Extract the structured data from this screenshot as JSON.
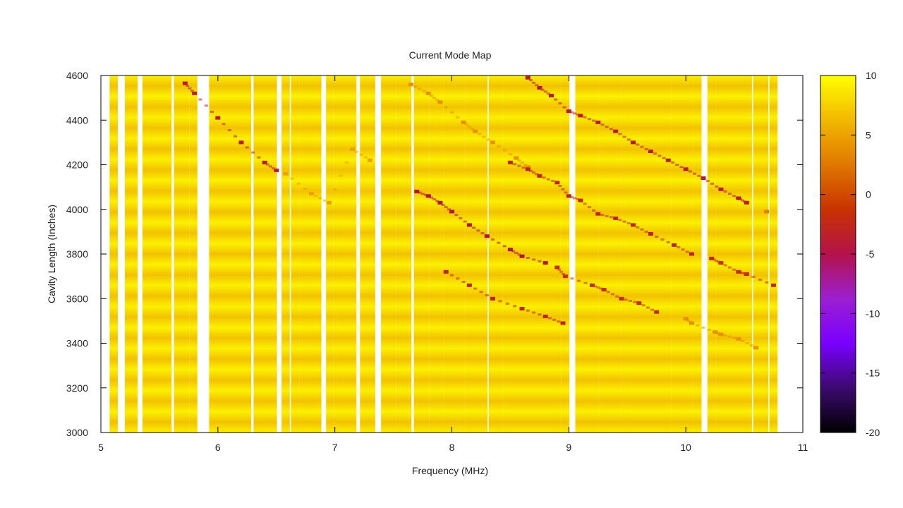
{
  "chart_data": {
    "type": "heatmap",
    "title": "Current Mode Map",
    "xlabel": "Frequency (MHz)",
    "ylabel": "Cavity Length (Inches)",
    "xlim": [
      5,
      11
    ],
    "ylim": [
      3000,
      4600
    ],
    "x_ticks": [
      "5",
      "6",
      "7",
      "8",
      "9",
      "10",
      "11"
    ],
    "y_ticks": [
      "3000",
      "3200",
      "3400",
      "3600",
      "3800",
      "4000",
      "4200",
      "4400",
      "4600"
    ],
    "colorbar": {
      "range": [
        -20,
        10
      ],
      "ticks": [
        "10",
        "5",
        "0",
        "-5",
        "-10",
        "-15",
        "-20"
      ],
      "palette": [
        "#000000",
        "#3c0a6e",
        "#7a00ff",
        "#9b1fd0",
        "#b4124a",
        "#c83200",
        "#e07800",
        "#f2b800",
        "#ffff00"
      ]
    },
    "background_value": 8.5,
    "column_width_mhz": 0.07,
    "columns_mhz": [
      5.11,
      5.24,
      5.28,
      5.39,
      5.45,
      5.51,
      5.57,
      5.66,
      5.72,
      5.79,
      5.96,
      6.02,
      6.08,
      6.14,
      6.19,
      6.25,
      6.34,
      6.4,
      6.47,
      6.58,
      6.66,
      6.73,
      6.79,
      6.85,
      6.96,
      7.03,
      7.09,
      7.15,
      7.25,
      7.31,
      7.43,
      7.49,
      7.56,
      7.62,
      7.71,
      7.77,
      7.84,
      7.89,
      7.96,
      8.02,
      8.08,
      8.15,
      8.21,
      8.27,
      8.35,
      8.4,
      8.47,
      8.53,
      8.59,
      8.65,
      8.71,
      8.78,
      8.84,
      8.9,
      8.97,
      9.09,
      9.15,
      9.22,
      9.29,
      9.35,
      9.41,
      9.48,
      9.54,
      9.6,
      9.66,
      9.72,
      9.79,
      9.84,
      9.91,
      9.97,
      10.03,
      10.1,
      10.22,
      10.29,
      10.35,
      10.41,
      10.47,
      10.53,
      10.61,
      10.67,
      10.75
    ],
    "mode_lines": [
      {
        "x": [
          5.72,
          5.8,
          6.0,
          6.2,
          6.4,
          6.5
        ],
        "y": [
          4565,
          4520,
          4410,
          4300,
          4210,
          4175
        ],
        "value": -4
      },
      {
        "x": [
          6.58,
          6.8,
          6.95,
          7.15,
          7.3
        ],
        "y": [
          4160,
          4070,
          4030,
          4270,
          4220
        ],
        "value": 5
      },
      {
        "x": [
          7.65,
          7.8,
          7.9,
          8.1,
          8.2,
          8.35,
          8.55,
          8.65
        ],
        "y": [
          4560,
          4520,
          4480,
          4390,
          4350,
          4300,
          4230,
          4190
        ],
        "value": 4
      },
      {
        "x": [
          7.7,
          7.8,
          7.9,
          8.0,
          8.15,
          8.3,
          8.5,
          8.6,
          8.8
        ],
        "y": [
          4080,
          4060,
          4030,
          3990,
          3930,
          3880,
          3820,
          3790,
          3760
        ],
        "value": -5
      },
      {
        "x": [
          8.5,
          8.65,
          8.75,
          8.9,
          9.0,
          9.1,
          9.25,
          9.4,
          9.55,
          9.7,
          9.9,
          10.05
        ],
        "y": [
          4210,
          4180,
          4150,
          4120,
          4060,
          4040,
          3980,
          3960,
          3930,
          3890,
          3840,
          3800
        ],
        "value": -3
      },
      {
        "x": [
          8.65,
          8.75,
          8.85,
          9.0,
          9.1,
          9.25,
          9.4,
          9.55,
          9.7,
          9.85,
          10.0,
          10.15,
          10.3,
          10.45,
          10.52
        ],
        "y": [
          4590,
          4545,
          4510,
          4440,
          4420,
          4390,
          4350,
          4300,
          4260,
          4220,
          4180,
          4140,
          4090,
          4050,
          4030
        ],
        "value": -4
      },
      {
        "x": [
          7.95,
          8.15,
          8.35,
          8.6,
          8.8,
          8.95
        ],
        "y": [
          3720,
          3660,
          3600,
          3555,
          3520,
          3490
        ],
        "value": -3
      },
      {
        "x": [
          8.9,
          8.97,
          9.2,
          9.3,
          9.45,
          9.6,
          9.75
        ],
        "y": [
          3740,
          3700,
          3660,
          3640,
          3600,
          3580,
          3540
        ],
        "value": -2
      },
      {
        "x": [
          10.0,
          10.05,
          10.25,
          10.3,
          10.45,
          10.6
        ],
        "y": [
          3510,
          3490,
          3450,
          3440,
          3420,
          3380
        ],
        "value": 4
      },
      {
        "x": [
          10.22,
          10.3,
          10.45,
          10.52,
          10.75
        ],
        "y": [
          3780,
          3760,
          3720,
          3710,
          3660
        ],
        "value": -2
      },
      {
        "x": [
          10.69
        ],
        "y": [
          3990
        ],
        "value": 3
      }
    ]
  }
}
